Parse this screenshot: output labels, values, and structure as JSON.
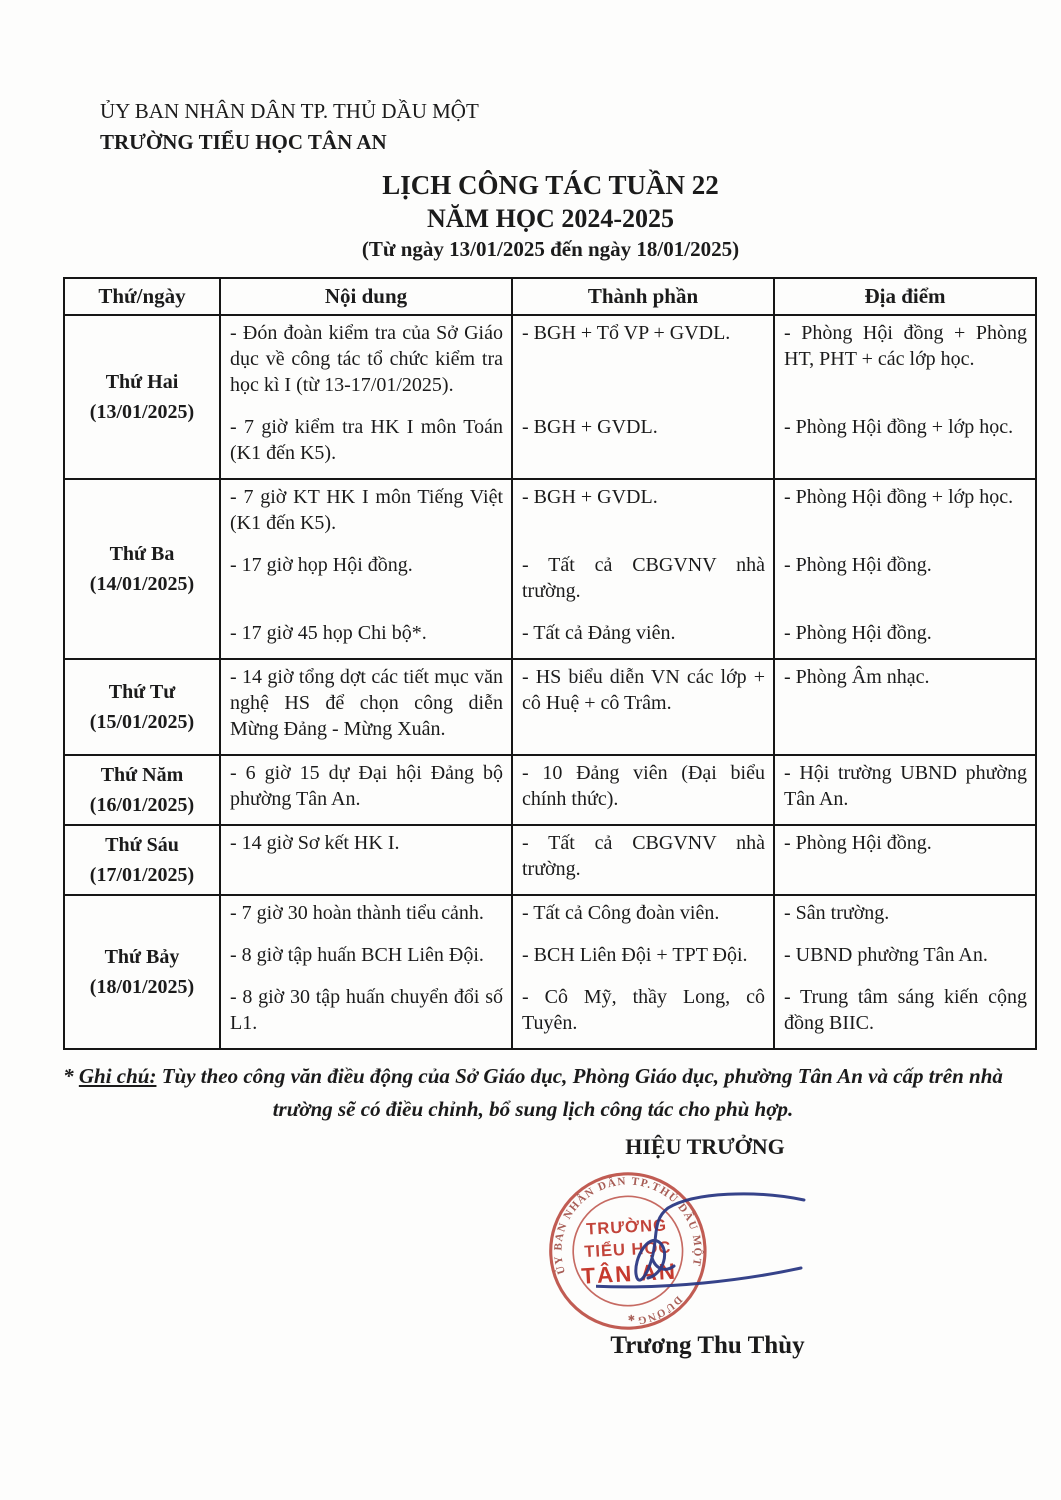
{
  "letterhead": {
    "org_line1": "ỦY BAN NHÂN DÂN TP. THỦ DẦU MỘT",
    "org_line2": "TRƯỜNG TIỂU HỌC TÂN AN",
    "title": "LỊCH CÔNG TÁC TUẦN 22",
    "subtitle": "NĂM HỌC 2024-2025",
    "date_range": "(Từ ngày 13/01/2025 đến ngày 18/01/2025)"
  },
  "table": {
    "headers": [
      "Thứ/ngày",
      "Nội dung",
      "Thành phần",
      "Địa điểm"
    ],
    "rows": [
      {
        "day": "Thứ Hai",
        "date": "(13/01/2025)",
        "activities": [
          {
            "noi_dung": "- Đón đoàn kiểm tra của Sở Giáo dục về công tác tổ chức kiểm tra học kì I (từ 13-17/01/2025).",
            "thanh_phan": "- BGH + Tổ VP + GVDL.",
            "dia_diem": "- Phòng Hội đồng + Phòng HT, PHT + các lớp học."
          },
          {
            "noi_dung": "- 7 giờ kiểm tra HK I môn Toán (K1 đến K5).",
            "thanh_phan": "- BGH + GVDL.",
            "dia_diem": "- Phòng Hội đồng + lớp học."
          }
        ]
      },
      {
        "day": "Thứ Ba",
        "date": "(14/01/2025)",
        "activities": [
          {
            "noi_dung": "- 7 giờ KT HK I môn Tiếng Việt (K1 đến K5).",
            "thanh_phan": "- BGH + GVDL.",
            "dia_diem": "- Phòng Hội đồng + lớp học."
          },
          {
            "noi_dung": "- 17 giờ họp Hội đồng.",
            "thanh_phan": "- Tất cả CBGVNV nhà trường.",
            "dia_diem": "- Phòng Hội đồng."
          },
          {
            "noi_dung": "- 17 giờ 45 họp Chi bộ*.",
            "thanh_phan": "- Tất cả Đảng viên.",
            "dia_diem": "- Phòng Hội đồng."
          }
        ]
      },
      {
        "day": "Thứ Tư",
        "date": "(15/01/2025)",
        "activities": [
          {
            "noi_dung": "- 14 giờ tổng dợt các tiết mục văn nghệ HS để chọn công diễn Mừng Đảng - Mừng Xuân.",
            "thanh_phan": "- HS biểu diễn VN các lớp + cô Huệ + cô Trâm.",
            "dia_diem": "- Phòng Âm nhạc."
          }
        ]
      },
      {
        "day": "Thứ Năm",
        "date": "(16/01/2025)",
        "activities": [
          {
            "noi_dung": "- 6 giờ 15 dự Đại hội Đảng bộ phường Tân An.",
            "thanh_phan": "- 10 Đảng viên (Đại biểu chính thức).",
            "dia_diem": "- Hội trường UBND phường Tân An."
          }
        ]
      },
      {
        "day": "Thứ Sáu",
        "date": "(17/01/2025)",
        "activities": [
          {
            "noi_dung": "- 14 giờ Sơ kết HK I.",
            "thanh_phan": "- Tất cả CBGVNV nhà trường.",
            "dia_diem": "- Phòng Hội đồng."
          }
        ]
      },
      {
        "day": "Thứ Bảy",
        "date": "(18/01/2025)",
        "activities": [
          {
            "noi_dung": "- 7 giờ 30 hoàn thành tiểu cảnh.",
            "thanh_phan": "- Tất cả Công đoàn viên.",
            "dia_diem": "- Sân trường."
          },
          {
            "noi_dung": "- 8 giờ tập huấn BCH Liên Đội.",
            "thanh_phan": "- BCH Liên Đội + TPT Đội.",
            "dia_diem": "- UBND phường Tân An."
          },
          {
            "noi_dung": "- 8 giờ 30 tập huấn chuyển đổi số L1.",
            "thanh_phan": "- Cô Mỹ, thầy Long, cô Tuyên.",
            "dia_diem": "- Trung tâm sáng kiến cộng đồng BIIC."
          }
        ]
      }
    ]
  },
  "note": {
    "star": "* ",
    "label": "Ghi chú:",
    "text": " Tùy theo công văn điều động của Sở Giáo dục, Phòng Giáo dục, phường Tân An và cấp trên nhà trường sẽ có điều chỉnh, bổ sung lịch công tác cho phù hợp."
  },
  "signature": {
    "role": "HIỆU TRƯỞNG",
    "name": "Trương Thu Thùy",
    "stamp": {
      "ring_text_top": "ỦY BAN NHÂN DÂN TP.THỦ DẦU MỘT",
      "ring_text_bottom": "DƯƠNG",
      "ring_star": "✱",
      "line1": "TRƯỜNG",
      "line2": "TIỂU HỌC",
      "line3": "TÂN AN"
    }
  },
  "colors": {
    "stamp_red": "#b8453b",
    "stamp_text_red": "#c2443a",
    "stamp_name_red": "#c63a2e",
    "ring_text_red": "#a05048",
    "signature_blue": "#2c3a84",
    "ink_black": "#1b1b1b"
  }
}
